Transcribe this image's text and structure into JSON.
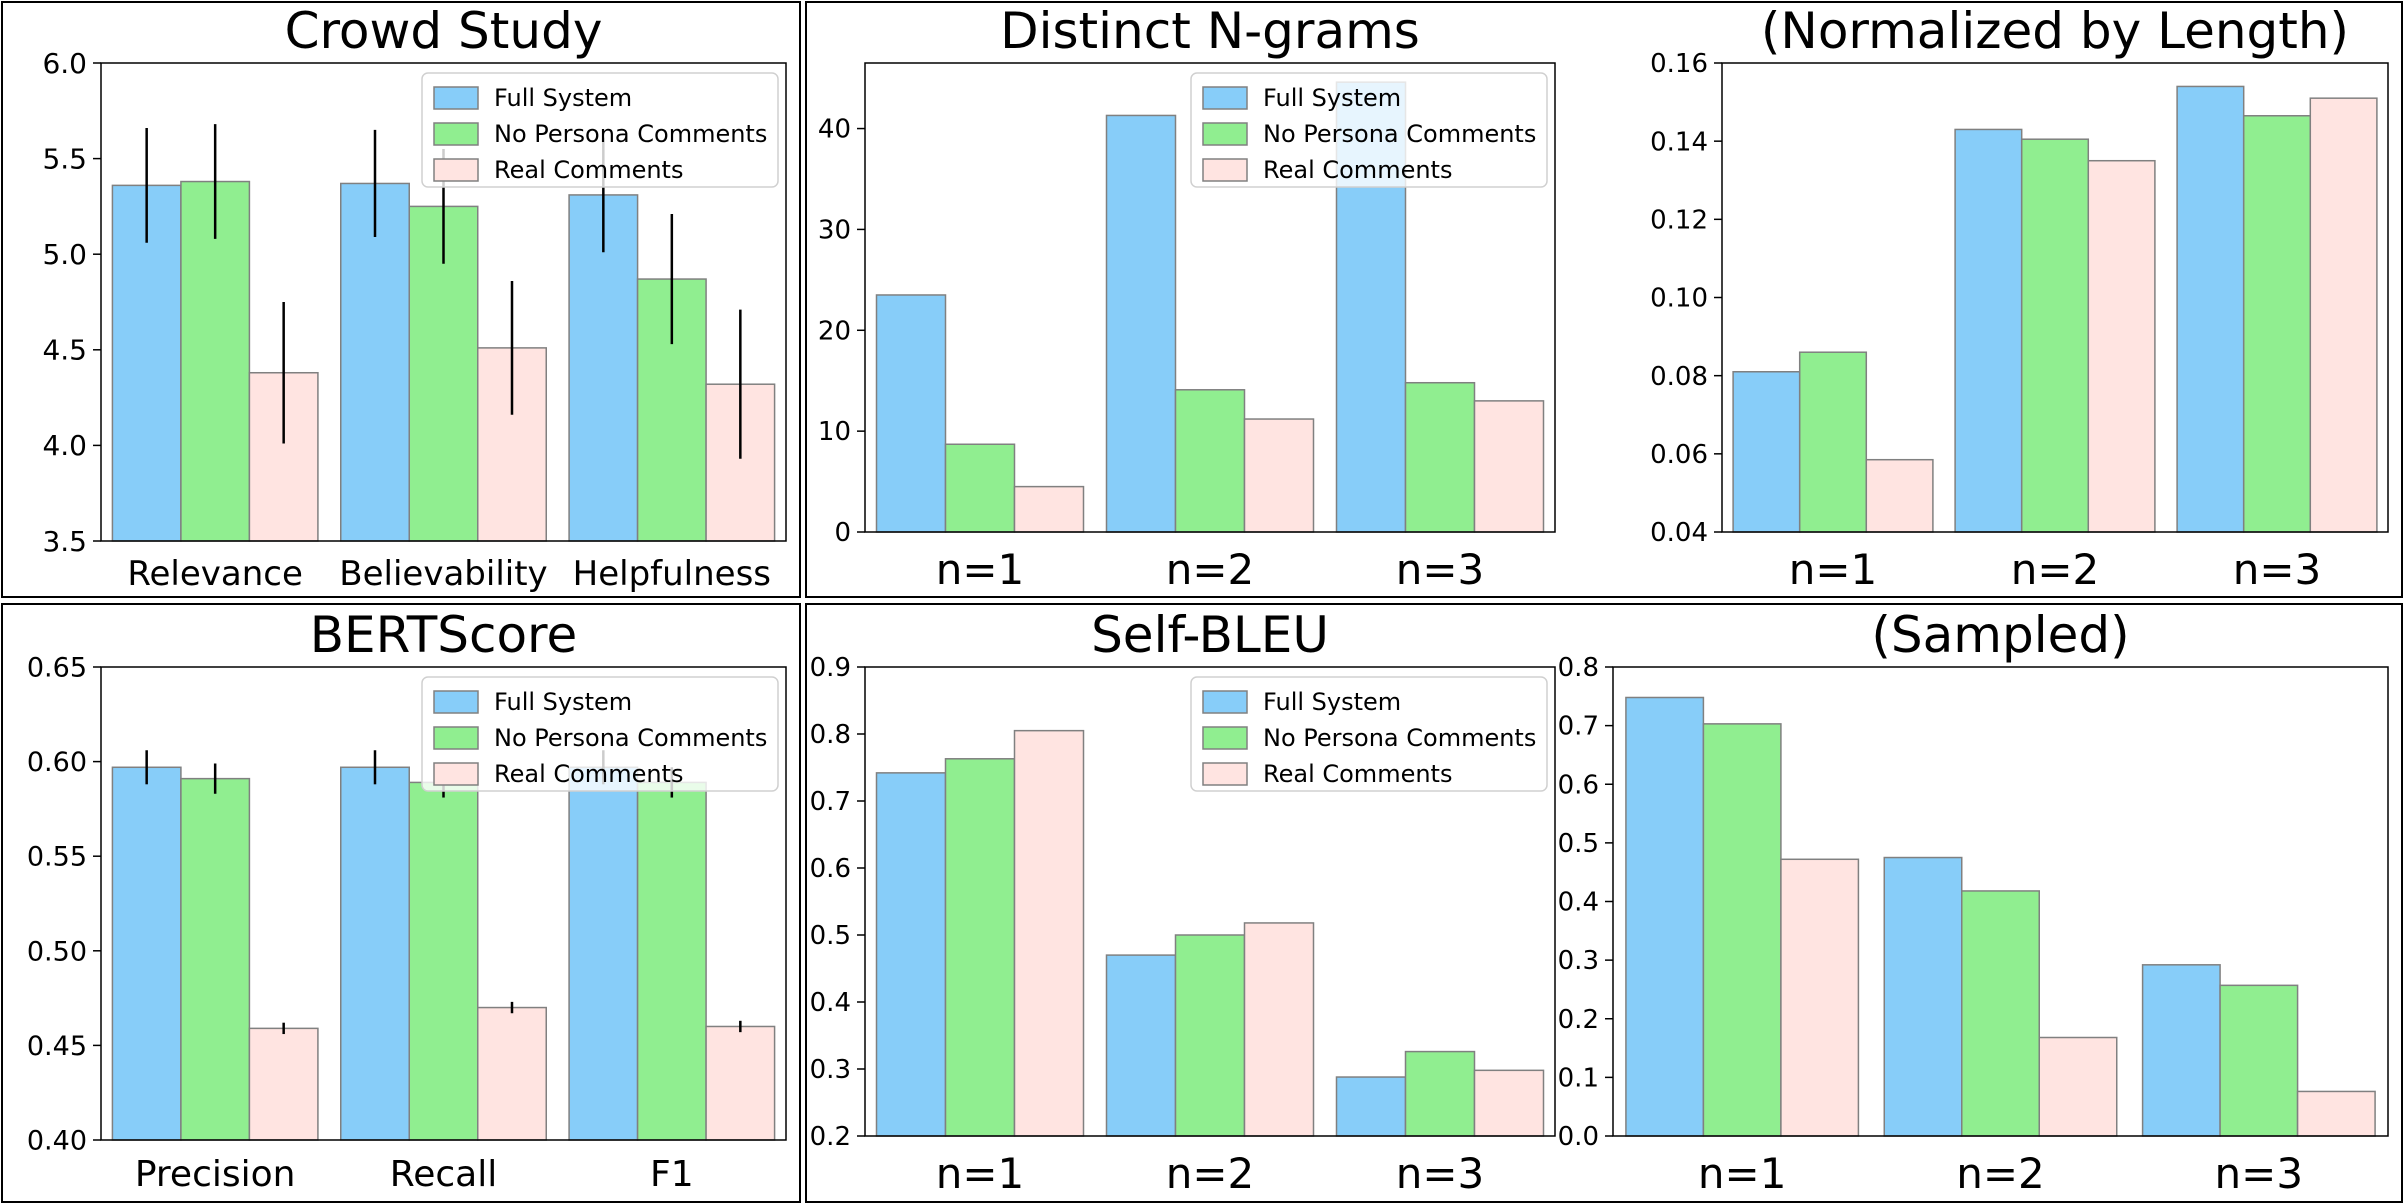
{
  "colors": {
    "full": "#87cdf9",
    "nopersona": "#90ee90",
    "real": "#ffe4e1",
    "edge": "#808080"
  },
  "legend": [
    "Full System",
    "No Persona Comments",
    "Real Comments"
  ],
  "chart_data": [
    {
      "id": "crowd",
      "type": "bar",
      "title": "Crowd Study",
      "categories": [
        "Relevance",
        "Believability",
        "Helpfulness"
      ],
      "series": [
        {
          "name": "Full System",
          "values": [
            5.36,
            5.37,
            5.31
          ],
          "err": [
            0.3,
            0.28,
            0.3
          ]
        },
        {
          "name": "No Persona Comments",
          "values": [
            5.38,
            5.25,
            4.87
          ],
          "err": [
            0.3,
            0.3,
            0.34
          ]
        },
        {
          "name": "Real Comments",
          "values": [
            4.38,
            4.51,
            4.32
          ],
          "err": [
            0.37,
            0.35,
            0.39
          ]
        }
      ],
      "ylim": [
        3.5,
        6.0
      ],
      "yticks": [
        "3.5",
        "4.0",
        "4.5",
        "5.0",
        "5.5",
        "6.0"
      ],
      "legend_position": "top-right"
    },
    {
      "id": "ngrams",
      "type": "bar",
      "title": "Distinct N-grams",
      "categories": [
        "n=1",
        "n=2",
        "n=3"
      ],
      "series": [
        {
          "name": "Full System",
          "values": [
            23.5,
            41.3,
            44.6
          ]
        },
        {
          "name": "No Persona Comments",
          "values": [
            8.7,
            14.1,
            14.8
          ]
        },
        {
          "name": "Real Comments",
          "values": [
            4.5,
            11.2,
            13.0
          ]
        }
      ],
      "ylim": [
        0,
        46.5
      ],
      "yticks": [
        "0",
        "10",
        "20",
        "30",
        "40"
      ],
      "legend_position": "top-right"
    },
    {
      "id": "ngrams_norm",
      "type": "bar",
      "title": "(Normalized by Length)",
      "categories": [
        "n=1",
        "n=2",
        "n=3"
      ],
      "series": [
        {
          "name": "Full System",
          "values": [
            0.081,
            0.143,
            0.154
          ]
        },
        {
          "name": "No Persona Comments",
          "values": [
            0.086,
            0.1405,
            0.1465
          ]
        },
        {
          "name": "Real Comments",
          "values": [
            0.0585,
            0.135,
            0.151
          ]
        }
      ],
      "ylim": [
        0.04,
        0.16
      ],
      "yticks": [
        "0.04",
        "0.06",
        "0.08",
        "0.10",
        "0.12",
        "0.14",
        "0.16"
      ]
    },
    {
      "id": "bertscore",
      "type": "bar",
      "title": "BERTScore",
      "categories": [
        "Precision",
        "Recall",
        "F1"
      ],
      "series": [
        {
          "name": "Full System",
          "values": [
            0.597,
            0.597,
            0.597
          ],
          "err": [
            0.009,
            0.009,
            0.009
          ]
        },
        {
          "name": "No Persona Comments",
          "values": [
            0.591,
            0.589,
            0.589
          ],
          "err": [
            0.008,
            0.008,
            0.008
          ]
        },
        {
          "name": "Real Comments",
          "values": [
            0.459,
            0.47,
            0.46
          ],
          "err": [
            0.003,
            0.003,
            0.003
          ]
        }
      ],
      "ylim": [
        0.4,
        0.65
      ],
      "yticks": [
        "0.40",
        "0.45",
        "0.50",
        "0.55",
        "0.60",
        "0.65"
      ],
      "legend_position": "top-right"
    },
    {
      "id": "selfbleu",
      "type": "bar",
      "title": "Self-BLEU",
      "categories": [
        "n=1",
        "n=2",
        "n=3"
      ],
      "series": [
        {
          "name": "Full System",
          "values": [
            0.742,
            0.47,
            0.288
          ]
        },
        {
          "name": "No Persona Comments",
          "values": [
            0.763,
            0.5,
            0.326
          ]
        },
        {
          "name": "Real Comments",
          "values": [
            0.805,
            0.518,
            0.298
          ]
        }
      ],
      "ylim": [
        0.2,
        0.9
      ],
      "yticks": [
        "0.2",
        "0.3",
        "0.4",
        "0.5",
        "0.6",
        "0.7",
        "0.8",
        "0.9"
      ],
      "legend_position": "top-right"
    },
    {
      "id": "selfbleu_sampled",
      "type": "bar",
      "title": "(Sampled)",
      "categories": [
        "n=1",
        "n=2",
        "n=3"
      ],
      "series": [
        {
          "name": "Full System",
          "values": [
            0.748,
            0.475,
            0.292
          ]
        },
        {
          "name": "No Persona Comments",
          "values": [
            0.703,
            0.418,
            0.257
          ]
        },
        {
          "name": "Real Comments",
          "values": [
            0.472,
            0.168,
            0.076
          ]
        }
      ],
      "ylim": [
        0.0,
        0.8
      ],
      "yticks": [
        "0.0",
        "0.1",
        "0.2",
        "0.3",
        "0.4",
        "0.5",
        "0.6",
        "0.7",
        "0.8"
      ]
    }
  ]
}
